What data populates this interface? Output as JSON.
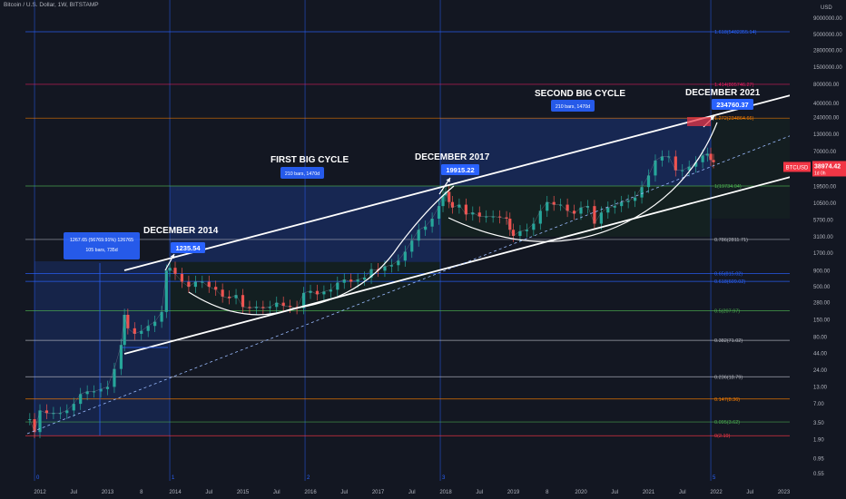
{
  "header": {
    "title": "Bitcoin / U.S. Dollar, 1W, BITSTAMP"
  },
  "chart_data": {
    "type": "line",
    "title": "Bitcoin / U.S. Dollar, 1W, BITSTAMP",
    "y_scale": "log",
    "currency": "USD",
    "y_ticks": [
      "9000000.00",
      "5000000.00",
      "2800000.00",
      "1500000.00",
      "800000.00",
      "400000.00",
      "240000.00",
      "130000.00",
      "70000.00",
      "38974.42",
      "19500.00",
      "10500.00",
      "5700.00",
      "3100.00",
      "1700.00",
      "900.00",
      "500.00",
      "280.00",
      "150.00",
      "80.00",
      "44.00",
      "24.00",
      "13.00",
      "7.00",
      "3.50",
      "1.90",
      "0.95",
      "0.55"
    ],
    "x_ticks": [
      "2012",
      "Jul",
      "2013",
      "8",
      "2014",
      "Jul",
      "2015",
      "Jul",
      "2016",
      "Jul",
      "2017",
      "Jul",
      "2018",
      "Jul",
      "2019",
      "8",
      "2020",
      "Jul",
      "2021",
      "Jul",
      "2022",
      "Jul",
      "2023"
    ],
    "x_tick_years": [
      2012.0,
      2012.5,
      2013.0,
      2013.5,
      2014.0,
      2014.5,
      2015.0,
      2015.5,
      2016.0,
      2016.5,
      2017.0,
      2017.5,
      2018.0,
      2018.5,
      2019.0,
      2019.5,
      2020.0,
      2020.5,
      2021.0,
      2021.5,
      2022.0,
      2022.5,
      2023.0
    ],
    "price_series": {
      "name": "BTCUSD",
      "x": [
        2011.85,
        2011.92,
        2012.0,
        2012.1,
        2012.2,
        2012.3,
        2012.4,
        2012.5,
        2012.6,
        2012.7,
        2012.8,
        2012.9,
        2013.0,
        2013.1,
        2013.2,
        2013.25,
        2013.3,
        2013.4,
        2013.5,
        2013.6,
        2013.7,
        2013.8,
        2013.87,
        2013.92,
        2014.0,
        2014.1,
        2014.2,
        2014.3,
        2014.4,
        2014.5,
        2014.6,
        2014.7,
        2014.8,
        2014.9,
        2015.0,
        2015.1,
        2015.2,
        2015.3,
        2015.4,
        2015.5,
        2015.6,
        2015.7,
        2015.8,
        2015.9,
        2016.0,
        2016.1,
        2016.2,
        2016.3,
        2016.4,
        2016.5,
        2016.6,
        2016.7,
        2016.8,
        2016.9,
        2017.0,
        2017.1,
        2017.2,
        2017.3,
        2017.4,
        2017.5,
        2017.6,
        2017.7,
        2017.8,
        2017.9,
        2017.96,
        2018.0,
        2018.05,
        2018.1,
        2018.2,
        2018.3,
        2018.4,
        2018.5,
        2018.6,
        2018.7,
        2018.8,
        2018.9,
        2018.95,
        2019.0,
        2019.1,
        2019.2,
        2019.3,
        2019.4,
        2019.5,
        2019.6,
        2019.7,
        2019.8,
        2019.9,
        2020.0,
        2020.1,
        2020.2,
        2020.3,
        2020.4,
        2020.5,
        2020.6,
        2020.7,
        2020.8,
        2020.9,
        2021.0,
        2021.1,
        2021.2,
        2021.3,
        2021.4,
        2021.5,
        2021.6,
        2021.7,
        2021.8,
        2021.87,
        2021.92,
        2021.96
      ],
      "y": [
        4,
        2.5,
        5.5,
        5,
        5,
        5,
        5.5,
        7,
        10,
        11,
        11,
        12,
        13,
        25,
        60,
        180,
        110,
        90,
        100,
        120,
        140,
        200,
        900,
        1000,
        800,
        600,
        500,
        600,
        600,
        500,
        450,
        350,
        330,
        370,
        240,
        230,
        240,
        230,
        240,
        280,
        250,
        240,
        230,
        400,
        430,
        380,
        420,
        450,
        580,
        650,
        600,
        650,
        700,
        950,
        900,
        1050,
        1100,
        1300,
        1800,
        2700,
        4000,
        4500,
        6000,
        9500,
        14000,
        16000,
        11000,
        9000,
        10000,
        7000,
        7500,
        6500,
        6500,
        6500,
        6300,
        6000,
        4000,
        3200,
        3800,
        4000,
        5000,
        8000,
        11000,
        10000,
        10000,
        8000,
        7200,
        9000,
        9500,
        5000,
        7500,
        9000,
        9500,
        11000,
        11500,
        13000,
        19000,
        29000,
        50000,
        58000,
        58000,
        35000,
        35000,
        40000,
        47000,
        60000,
        64000,
        51000,
        47000
      ]
    },
    "y_labels": [
      {
        "value": 38974.42,
        "text": "38974.42",
        "color": "#f23645",
        "note": "1d 0h"
      }
    ],
    "fib_levels": [
      {
        "label": "1.618(5482355.14)",
        "value": 5482355.14,
        "color": "#2962ff"
      },
      {
        "label": "1.414(805746.27)",
        "value": 805746.27,
        "color": "#e91e63"
      },
      {
        "label": "1.272(234864.66)",
        "value": 234864.66,
        "color": "#f57c00"
      },
      {
        "label": "1(19734.04)",
        "value": 19734.04,
        "color": "#4caf50"
      },
      {
        "label": "0.786(2811.71)",
        "value": 2811.71,
        "color": "#b2b5be"
      },
      {
        "label": "0.65(815.02)",
        "value": 815.02,
        "color": "#2962ff"
      },
      {
        "label": "0.618(609.02)",
        "value": 609.02,
        "color": "#2962ff"
      },
      {
        "label": "0.5(207.97)",
        "value": 207.97,
        "color": "#4caf50"
      },
      {
        "label": "0.382(71.02)",
        "value": 71.02,
        "color": "#b2b5be"
      },
      {
        "label": "0.236(18.79)",
        "value": 18.79,
        "color": "#b2b5be"
      },
      {
        "label": "0.147(8.36)",
        "value": 8.36,
        "color": "#f57c00"
      },
      {
        "label": "0.095(3.62)",
        "value": 3.62,
        "color": "#4caf50"
      },
      {
        "label": "0(2.19)",
        "value": 2.19,
        "color": "#f23645"
      }
    ],
    "cycle_markers": [
      {
        "label": "0",
        "x": 2011.92
      },
      {
        "label": "1",
        "x": 2013.92
      },
      {
        "label": "2",
        "x": 2015.92
      },
      {
        "label": "3",
        "x": 2017.92
      },
      {
        "label": "5",
        "x": 2021.92
      }
    ],
    "annotations": [
      {
        "text": "DECEMBER 2014",
        "kind": "heading"
      },
      {
        "text": "FIRST BIG CYCLE",
        "kind": "heading"
      },
      {
        "text": "DECEMBER 2017",
        "kind": "heading"
      },
      {
        "text": "SECOND BIG CYCLE",
        "kind": "heading"
      },
      {
        "text": "DECEMBER 2021",
        "kind": "heading"
      },
      {
        "text": "1235.54",
        "kind": "price_tag"
      },
      {
        "text": "19915.22",
        "kind": "price_tag"
      },
      {
        "text": "234760.37",
        "kind": "price_tag"
      },
      {
        "text": "1267.65 (56769.91%) 126765",
        "kind": "measure"
      },
      {
        "text": "105 bars, 735d",
        "kind": "measure"
      },
      {
        "text": "210 bars, 1470d",
        "kind": "measure"
      },
      {
        "text": "210 bars, 1470d",
        "kind": "measure"
      }
    ],
    "symbol_label": "BTCUSD",
    "currency_label": "USD",
    "grid": false
  }
}
